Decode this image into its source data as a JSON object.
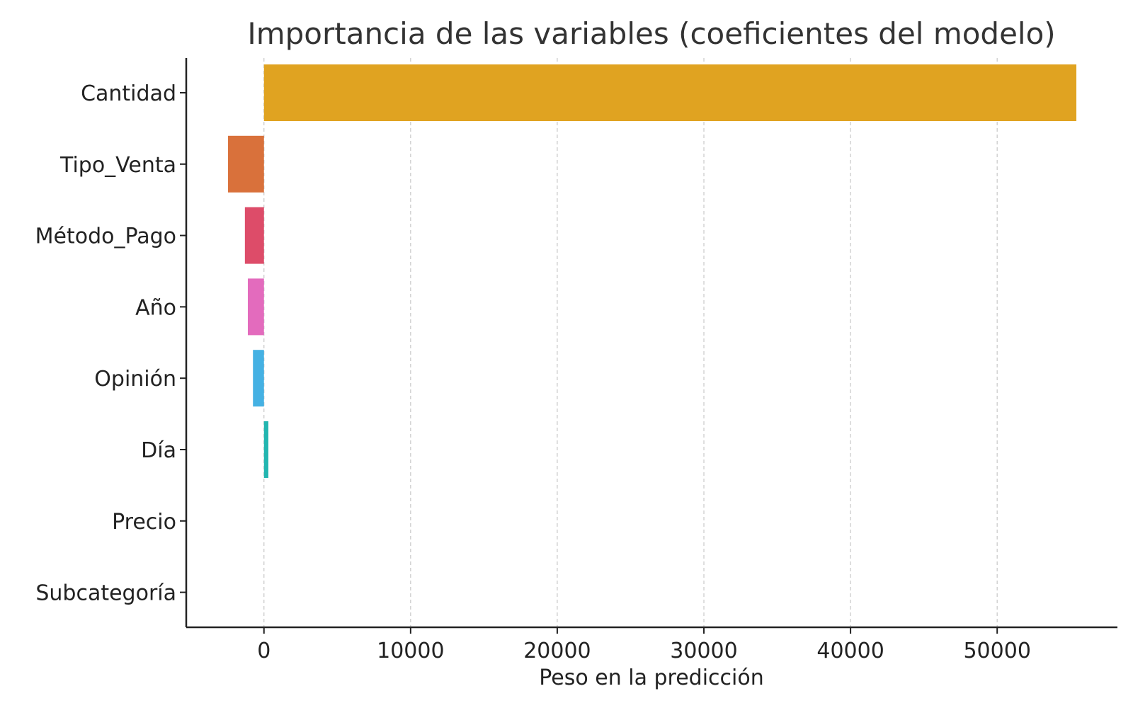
{
  "chart_data": {
    "type": "bar",
    "orientation": "horizontal",
    "title": "Importancia de las variables (coeficientes del modelo)",
    "xlabel": "Peso en la predicción",
    "ylabel": "",
    "categories": [
      "Cantidad",
      "Tipo_Venta",
      "Método_Pago",
      "Año",
      "Opinión",
      "Día",
      "Precio",
      "Subcategoría"
    ],
    "values": [
      55400,
      -2450,
      -1300,
      -1100,
      -750,
      300,
      0,
      0
    ],
    "colors": [
      "#e0a321",
      "#d9713b",
      "#dd4c69",
      "#e36bbd",
      "#45b1e3",
      "#23b6b0",
      "#8a8a8a",
      "#8a8a8a"
    ],
    "xlim": [
      -5300,
      58200
    ],
    "xticks": [
      0,
      10000,
      20000,
      30000,
      40000,
      50000
    ],
    "grid": "x",
    "legend": "none"
  }
}
